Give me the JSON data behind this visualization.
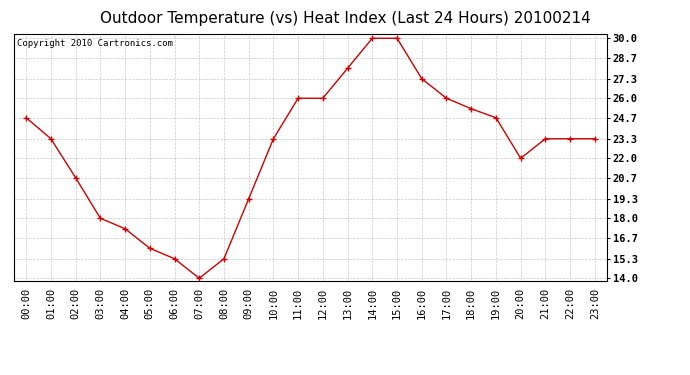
{
  "title": "Outdoor Temperature (vs) Heat Index (Last 24 Hours) 20100214",
  "copyright_text": "Copyright 2010 Cartronics.com",
  "x_labels": [
    "00:00",
    "01:00",
    "02:00",
    "03:00",
    "04:00",
    "05:00",
    "06:00",
    "07:00",
    "08:00",
    "09:00",
    "10:00",
    "11:00",
    "12:00",
    "13:00",
    "14:00",
    "15:00",
    "16:00",
    "17:00",
    "18:00",
    "19:00",
    "20:00",
    "21:00",
    "22:00",
    "23:00"
  ],
  "y_values": [
    24.7,
    23.3,
    20.7,
    18.0,
    17.3,
    16.0,
    15.3,
    14.0,
    15.3,
    19.3,
    23.3,
    26.0,
    26.0,
    28.0,
    30.0,
    30.0,
    27.3,
    26.0,
    25.3,
    24.7,
    22.0,
    23.3,
    23.3,
    23.3
  ],
  "line_color": "#cc0000",
  "marker": "+",
  "marker_color": "#cc0000",
  "background_color": "#ffffff",
  "plot_bg_color": "#ffffff",
  "grid_color": "#bbbbbb",
  "y_ticks": [
    14.0,
    15.3,
    16.7,
    18.0,
    19.3,
    20.7,
    22.0,
    23.3,
    24.7,
    26.0,
    27.3,
    28.7,
    30.0
  ],
  "ylim": [
    13.8,
    30.3
  ],
  "title_fontsize": 11,
  "axis_fontsize": 7.5,
  "copyright_fontsize": 6.5
}
